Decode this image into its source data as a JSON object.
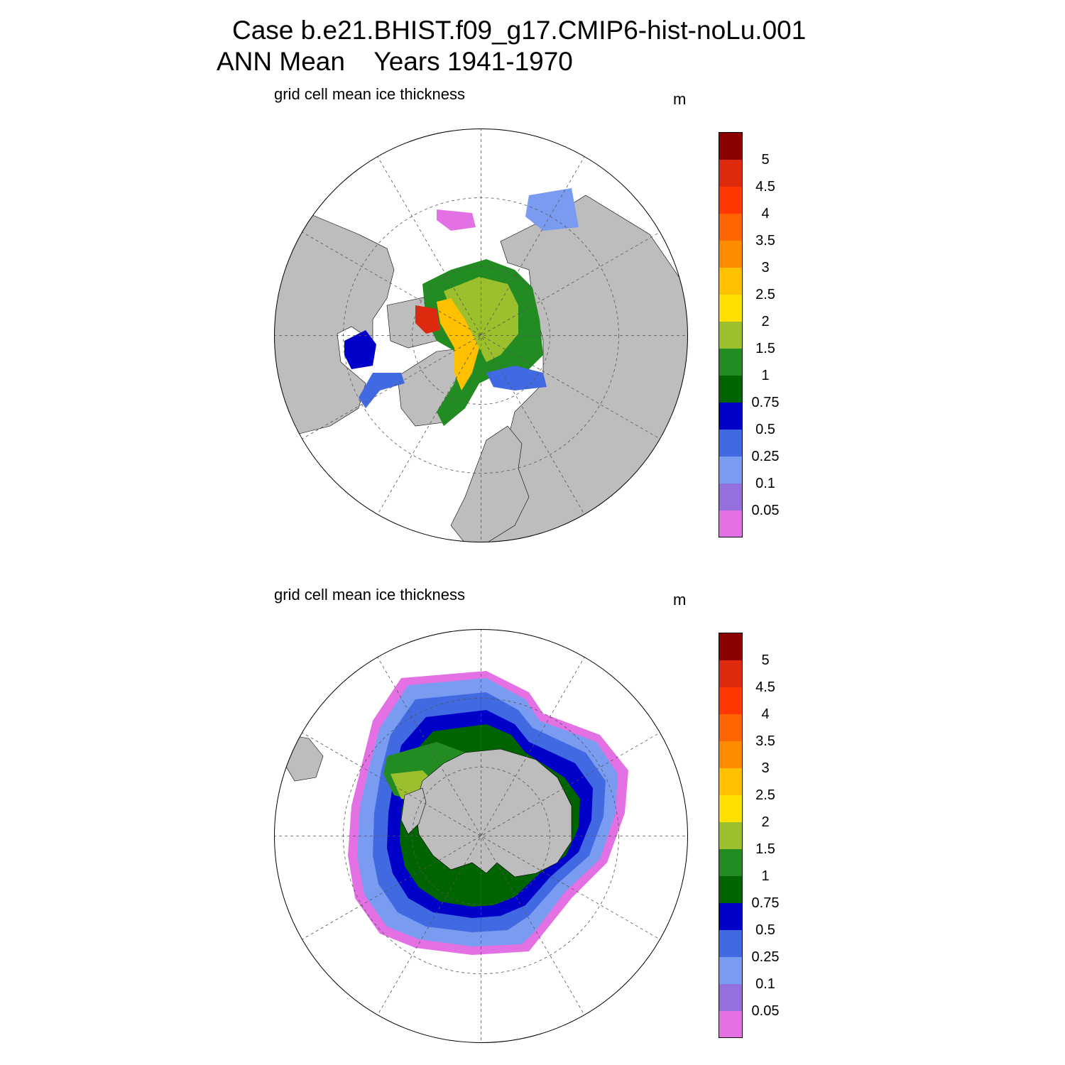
{
  "header": {
    "case_line": "Case b.e21.BHIST.f09_g17.CMIP6-hist-noLu.001",
    "mean_label": "ANN Mean",
    "years_label": "Years 1941-1970"
  },
  "panels": [
    {
      "id": "north",
      "variable_label": "grid cell mean ice thickness",
      "units": "m"
    },
    {
      "id": "south",
      "variable_label": "grid cell mean ice thickness",
      "units": "m"
    }
  ],
  "colorbar": {
    "labels": [
      "5",
      "4.5",
      "4",
      "3.5",
      "3",
      "2.5",
      "2",
      "1.5",
      "1",
      "0.75",
      "0.5",
      "0.25",
      "0.1",
      "0.05"
    ],
    "colors_top_to_bottom": [
      "#8b0000",
      "#dd2a0f",
      "#ff3700",
      "#ff6400",
      "#ff8c00",
      "#ffc000",
      "#ffe000",
      "#9cbf2e",
      "#228b22",
      "#006400",
      "#0000c8",
      "#4169e1",
      "#7a9cf0",
      "#9370db",
      "#e371e3"
    ]
  },
  "map_colors": {
    "land": "#bdbdbd",
    "ocean": "#ffffff"
  }
}
